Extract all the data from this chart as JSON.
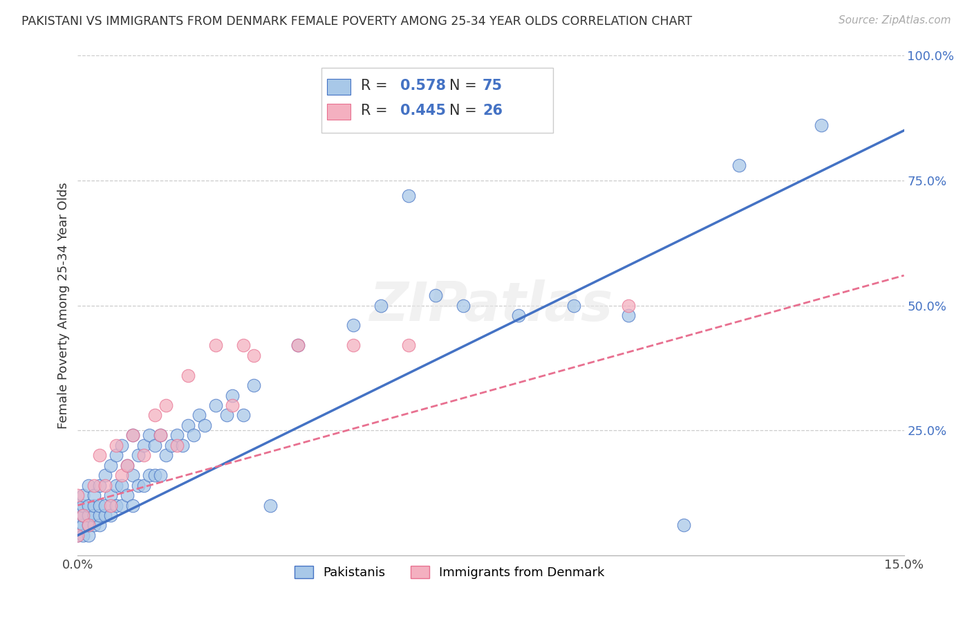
{
  "title": "PAKISTANI VS IMMIGRANTS FROM DENMARK FEMALE POVERTY AMONG 25-34 YEAR OLDS CORRELATION CHART",
  "source": "Source: ZipAtlas.com",
  "ylabel_label": "Female Poverty Among 25-34 Year Olds",
  "x_min": 0.0,
  "x_max": 0.15,
  "y_min": 0.0,
  "y_max": 1.0,
  "R_pakistani": 0.578,
  "N_pakistani": 75,
  "R_denmark": 0.445,
  "N_denmark": 26,
  "color_pakistani": "#a8c8e8",
  "color_denmark": "#f4b0c0",
  "line_color_pakistani": "#4472c4",
  "line_color_denmark": "#e87090",
  "accent_color": "#4472c4",
  "watermark": "ZIPatlas",
  "legend_label_pakistani": "Pakistanis",
  "legend_label_denmark": "Immigrants from Denmark",
  "pakistani_x": [
    0.0,
    0.0,
    0.0,
    0.0,
    0.001,
    0.001,
    0.001,
    0.001,
    0.001,
    0.002,
    0.002,
    0.002,
    0.002,
    0.002,
    0.003,
    0.003,
    0.003,
    0.003,
    0.004,
    0.004,
    0.004,
    0.004,
    0.005,
    0.005,
    0.005,
    0.006,
    0.006,
    0.006,
    0.007,
    0.007,
    0.007,
    0.008,
    0.008,
    0.008,
    0.009,
    0.009,
    0.01,
    0.01,
    0.01,
    0.011,
    0.011,
    0.012,
    0.012,
    0.013,
    0.013,
    0.014,
    0.014,
    0.015,
    0.015,
    0.016,
    0.017,
    0.018,
    0.019,
    0.02,
    0.021,
    0.022,
    0.023,
    0.025,
    0.027,
    0.028,
    0.03,
    0.032,
    0.035,
    0.04,
    0.05,
    0.055,
    0.06,
    0.065,
    0.07,
    0.08,
    0.09,
    0.1,
    0.11,
    0.12,
    0.135
  ],
  "pakistani_y": [
    0.04,
    0.06,
    0.08,
    0.1,
    0.04,
    0.06,
    0.08,
    0.1,
    0.12,
    0.04,
    0.06,
    0.08,
    0.1,
    0.14,
    0.06,
    0.08,
    0.1,
    0.12,
    0.06,
    0.08,
    0.1,
    0.14,
    0.08,
    0.1,
    0.16,
    0.08,
    0.12,
    0.18,
    0.1,
    0.14,
    0.2,
    0.1,
    0.14,
    0.22,
    0.12,
    0.18,
    0.1,
    0.16,
    0.24,
    0.14,
    0.2,
    0.14,
    0.22,
    0.16,
    0.24,
    0.16,
    0.22,
    0.16,
    0.24,
    0.2,
    0.22,
    0.24,
    0.22,
    0.26,
    0.24,
    0.28,
    0.26,
    0.3,
    0.28,
    0.32,
    0.28,
    0.34,
    0.1,
    0.42,
    0.46,
    0.5,
    0.72,
    0.52,
    0.5,
    0.48,
    0.5,
    0.48,
    0.06,
    0.78,
    0.86
  ],
  "denmark_x": [
    0.0,
    0.0,
    0.001,
    0.002,
    0.003,
    0.004,
    0.005,
    0.006,
    0.007,
    0.008,
    0.009,
    0.01,
    0.012,
    0.014,
    0.015,
    0.016,
    0.018,
    0.02,
    0.025,
    0.028,
    0.03,
    0.032,
    0.04,
    0.05,
    0.06,
    0.1
  ],
  "denmark_y": [
    0.04,
    0.12,
    0.08,
    0.06,
    0.14,
    0.2,
    0.14,
    0.1,
    0.22,
    0.16,
    0.18,
    0.24,
    0.2,
    0.28,
    0.24,
    0.3,
    0.22,
    0.36,
    0.42,
    0.3,
    0.42,
    0.4,
    0.42,
    0.42,
    0.42,
    0.5
  ],
  "pak_line_x0": 0.0,
  "pak_line_y0": 0.04,
  "pak_line_x1": 0.15,
  "pak_line_y1": 0.85,
  "den_line_x0": 0.0,
  "den_line_y0": 0.1,
  "den_line_x1": 0.15,
  "den_line_y1": 0.56
}
